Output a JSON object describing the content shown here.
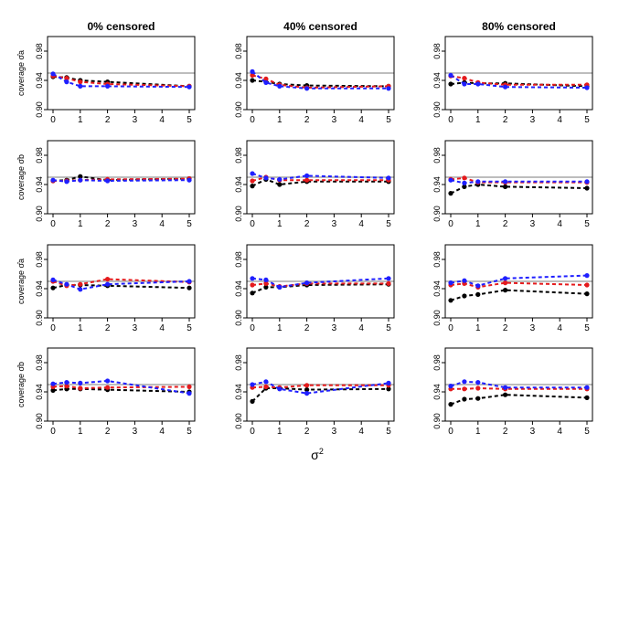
{
  "column_titles": [
    "0% censored",
    "40% censored",
    "80% censored"
  ],
  "row_ylabels": [
    "coverage σ̂a",
    "coverage σ̂b",
    "coverage σ̂a",
    "coverage σ̂b"
  ],
  "x_axis_label_base": "σ",
  "x_axis_label_sup": "2",
  "colors": {
    "black": "#000000",
    "red": "#e41a1c",
    "blue": "#1f1fff",
    "reference": "#bdbdbd"
  },
  "chart_data": {
    "type": "line",
    "layout": "4 rows x 3 columns grid of panels",
    "x": [
      0,
      0.5,
      1,
      2,
      5
    ],
    "x_ticks": [
      0,
      1,
      2,
      3,
      4,
      5
    ],
    "xlim": [
      0,
      5
    ],
    "ylim": [
      0.9,
      1.0
    ],
    "y_ticks": [
      0.9,
      0.94,
      0.98
    ],
    "y_tick_labels": [
      "0.90",
      "0.94",
      "0.98"
    ],
    "reference_line": 0.95,
    "grid": false,
    "panels": [
      {
        "row": 1,
        "col": 1,
        "series": [
          {
            "color": "black",
            "values": [
              0.945,
              0.944,
              0.94,
              0.938,
              0.932
            ]
          },
          {
            "color": "red",
            "values": [
              0.946,
              0.943,
              0.938,
              0.935,
              0.932
            ]
          },
          {
            "color": "blue",
            "values": [
              0.949,
              0.938,
              0.932,
              0.932,
              0.931
            ]
          }
        ]
      },
      {
        "row": 1,
        "col": 2,
        "series": [
          {
            "color": "black",
            "values": [
              0.94,
              0.938,
              0.935,
              0.933,
              0.932
            ]
          },
          {
            "color": "red",
            "values": [
              0.947,
              0.942,
              0.934,
              0.93,
              0.932
            ]
          },
          {
            "color": "blue",
            "values": [
              0.952,
              0.937,
              0.932,
              0.929,
              0.929
            ]
          }
        ]
      },
      {
        "row": 1,
        "col": 3,
        "series": [
          {
            "color": "black",
            "values": [
              0.935,
              0.937,
              0.936,
              0.936,
              0.932
            ]
          },
          {
            "color": "red",
            "values": [
              0.946,
              0.943,
              0.937,
              0.934,
              0.934
            ]
          },
          {
            "color": "blue",
            "values": [
              0.947,
              0.935,
              0.935,
              0.931,
              0.93
            ]
          }
        ]
      },
      {
        "row": 2,
        "col": 1,
        "series": [
          {
            "color": "black",
            "values": [
              0.945,
              0.946,
              0.951,
              0.946,
              0.948
            ]
          },
          {
            "color": "red",
            "values": [
              0.945,
              0.945,
              0.946,
              0.947,
              0.948
            ]
          },
          {
            "color": "blue",
            "values": [
              0.946,
              0.944,
              0.946,
              0.945,
              0.946
            ]
          }
        ]
      },
      {
        "row": 2,
        "col": 2,
        "series": [
          {
            "color": "black",
            "values": [
              0.938,
              0.947,
              0.94,
              0.944,
              0.944
            ]
          },
          {
            "color": "red",
            "values": [
              0.945,
              0.95,
              0.946,
              0.946,
              0.946
            ]
          },
          {
            "color": "blue",
            "values": [
              0.955,
              0.949,
              0.947,
              0.952,
              0.949
            ]
          }
        ]
      },
      {
        "row": 2,
        "col": 3,
        "series": [
          {
            "color": "black",
            "values": [
              0.928,
              0.937,
              0.94,
              0.937,
              0.935
            ]
          },
          {
            "color": "red",
            "values": [
              0.947,
              0.949,
              0.943,
              0.943,
              0.943
            ]
          },
          {
            "color": "blue",
            "values": [
              0.946,
              0.942,
              0.944,
              0.944,
              0.944
            ]
          }
        ]
      },
      {
        "row": 3,
        "col": 1,
        "series": [
          {
            "color": "black",
            "values": [
              0.941,
              0.945,
              0.945,
              0.944,
              0.941
            ]
          },
          {
            "color": "red",
            "values": [
              0.95,
              0.944,
              0.946,
              0.953,
              0.949
            ]
          },
          {
            "color": "blue",
            "values": [
              0.952,
              0.946,
              0.939,
              0.946,
              0.95
            ]
          }
        ]
      },
      {
        "row": 3,
        "col": 2,
        "series": [
          {
            "color": "black",
            "values": [
              0.934,
              0.942,
              0.942,
              0.945,
              0.946
            ]
          },
          {
            "color": "red",
            "values": [
              0.945,
              0.947,
              0.943,
              0.947,
              0.947
            ]
          },
          {
            "color": "blue",
            "values": [
              0.954,
              0.952,
              0.942,
              0.948,
              0.954
            ]
          }
        ]
      },
      {
        "row": 3,
        "col": 3,
        "series": [
          {
            "color": "black",
            "values": [
              0.924,
              0.93,
              0.932,
              0.938,
              0.933
            ]
          },
          {
            "color": "red",
            "values": [
              0.945,
              0.947,
              0.942,
              0.948,
              0.945
            ]
          },
          {
            "color": "blue",
            "values": [
              0.948,
              0.951,
              0.944,
              0.954,
              0.958
            ]
          }
        ]
      },
      {
        "row": 4,
        "col": 1,
        "series": [
          {
            "color": "black",
            "values": [
              0.942,
              0.944,
              0.944,
              0.943,
              0.94
            ]
          },
          {
            "color": "red",
            "values": [
              0.947,
              0.948,
              0.945,
              0.946,
              0.947
            ]
          },
          {
            "color": "blue",
            "values": [
              0.951,
              0.953,
              0.952,
              0.955,
              0.938
            ]
          }
        ]
      },
      {
        "row": 4,
        "col": 2,
        "series": [
          {
            "color": "black",
            "values": [
              0.927,
              0.945,
              0.945,
              0.943,
              0.944
            ]
          },
          {
            "color": "red",
            "values": [
              0.946,
              0.947,
              0.946,
              0.949,
              0.949
            ]
          },
          {
            "color": "blue",
            "values": [
              0.95,
              0.954,
              0.944,
              0.938,
              0.952
            ]
          }
        ]
      },
      {
        "row": 4,
        "col": 3,
        "series": [
          {
            "color": "black",
            "values": [
              0.923,
              0.93,
              0.931,
              0.936,
              0.932
            ]
          },
          {
            "color": "red",
            "values": [
              0.944,
              0.944,
              0.945,
              0.944,
              0.944
            ]
          },
          {
            "color": "blue",
            "values": [
              0.948,
              0.954,
              0.953,
              0.946,
              0.946
            ]
          }
        ]
      }
    ]
  }
}
